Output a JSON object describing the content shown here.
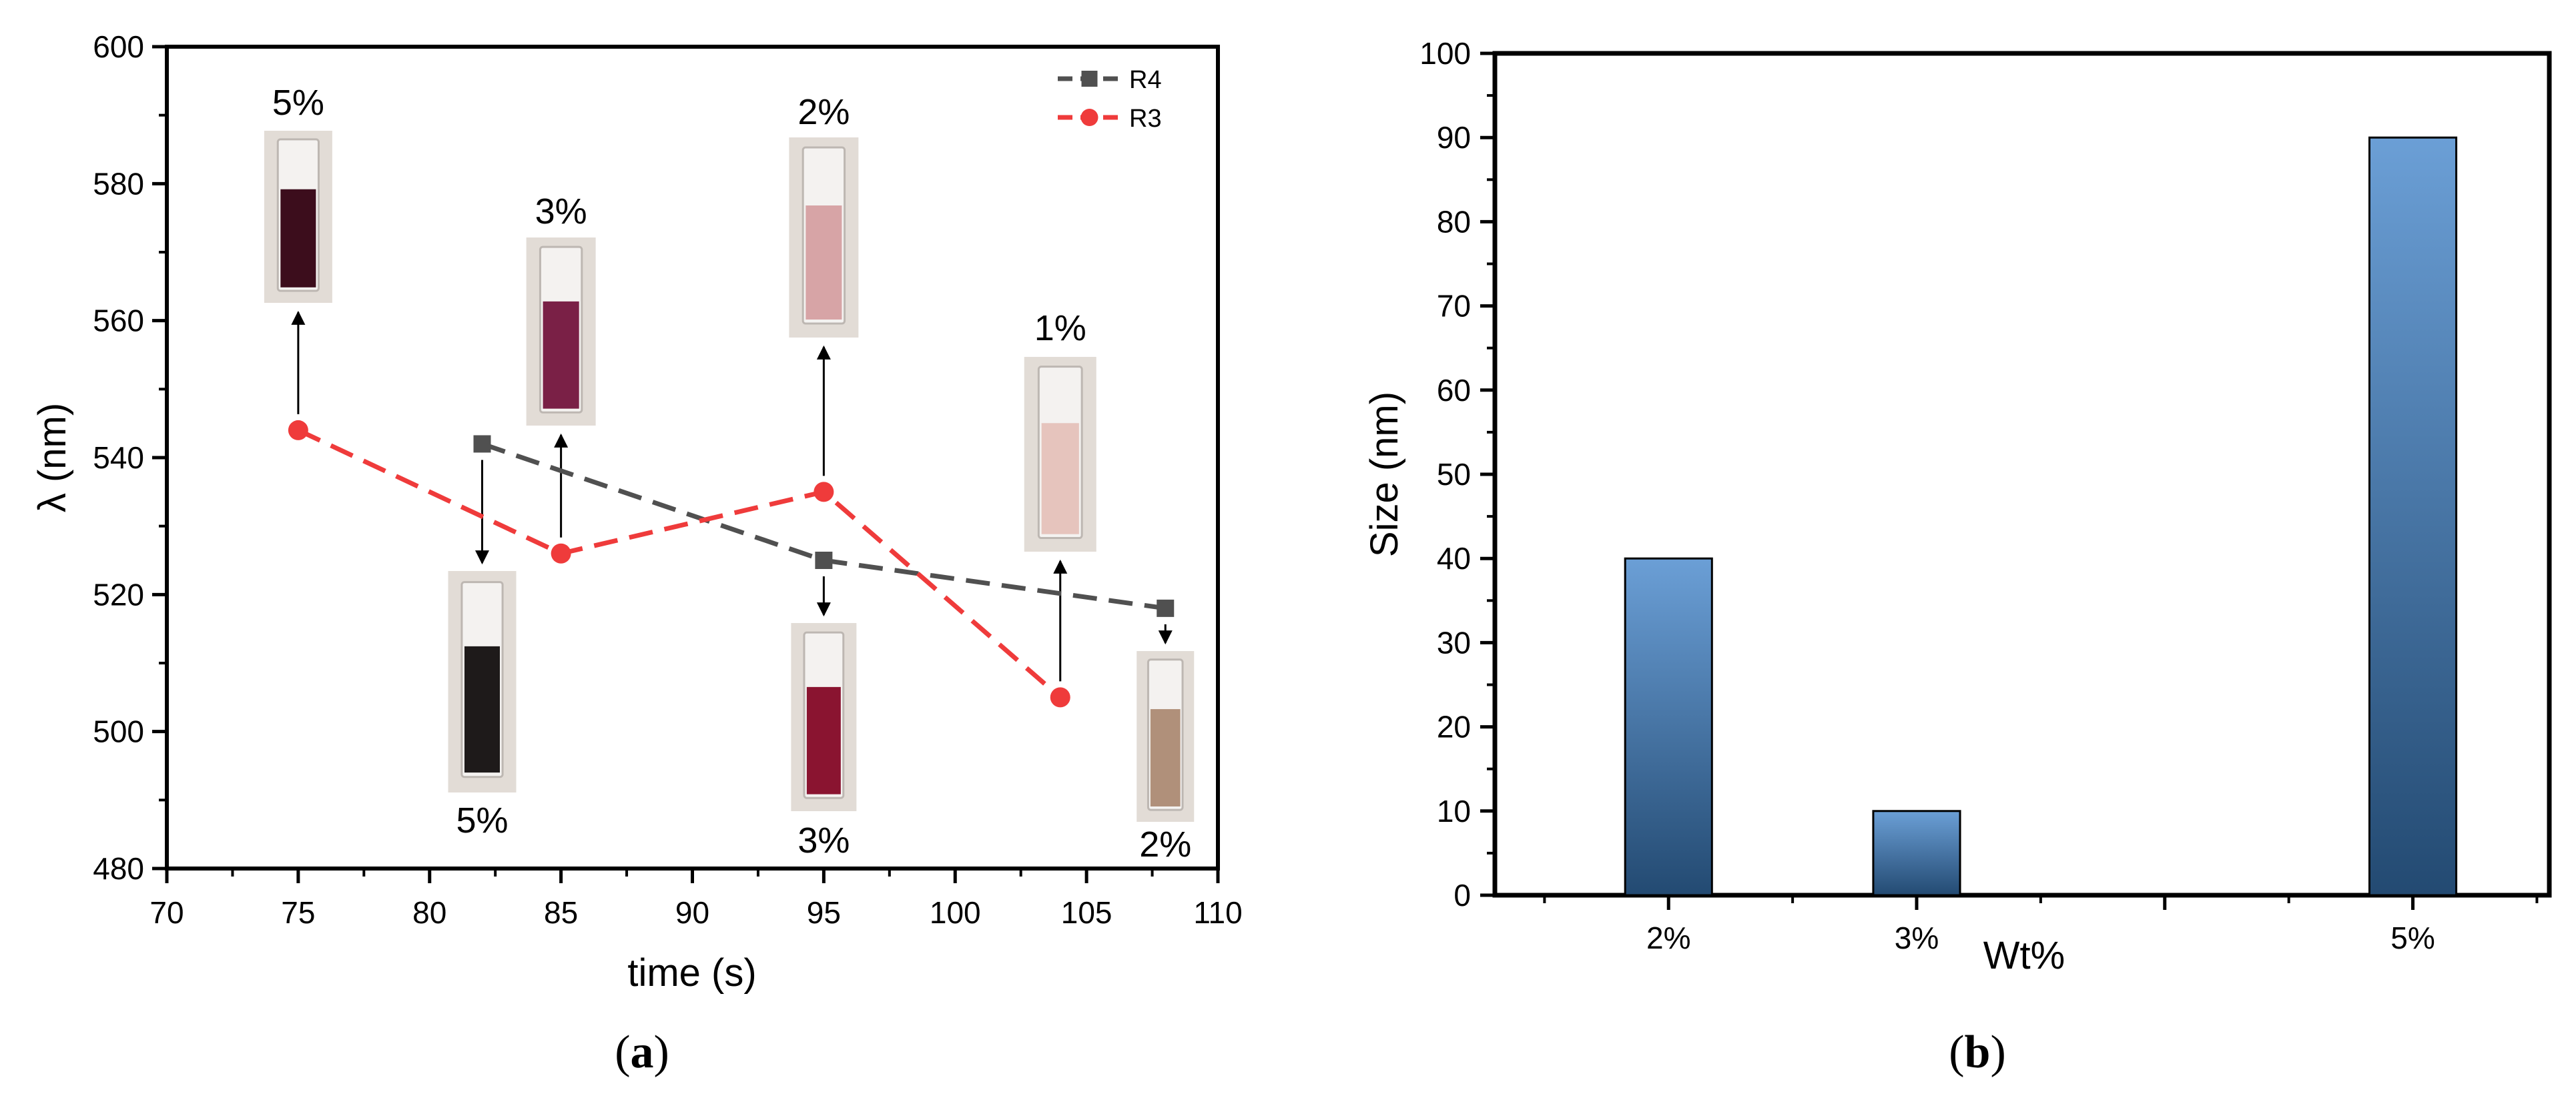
{
  "chart_data": [
    {
      "panel": "(a)",
      "type": "line",
      "xlabel": "time (s)",
      "ylabel": "λ (nm)",
      "xlim": [
        70,
        110
      ],
      "ylim": [
        480,
        600
      ],
      "xticks": [
        70,
        75,
        80,
        85,
        90,
        95,
        100,
        105,
        110
      ],
      "yticks": [
        480,
        500,
        520,
        540,
        560,
        580,
        600
      ],
      "legend_position": "top-right",
      "grid": false,
      "series": [
        {
          "name": "R4",
          "marker": "square",
          "color": "#505050",
          "x": [
            82,
            95,
            108
          ],
          "y": [
            542,
            525,
            518
          ],
          "annotations": [
            "5%",
            "3%",
            "2%"
          ]
        },
        {
          "name": "R3",
          "marker": "circle",
          "color": "#ef3b3b",
          "x": [
            75,
            85,
            95,
            104
          ],
          "y": [
            544,
            526,
            535,
            505
          ],
          "annotations": [
            "5%",
            "3%",
            "2%",
            "1%"
          ]
        }
      ],
      "vial_colors": {
        "R3": [
          "#3c0d1c",
          "#7a2046",
          "#d7a4a6",
          "#e6c4bd"
        ],
        "R4": [
          "#1e1a1a",
          "#8a1430",
          "#b0907a"
        ]
      }
    },
    {
      "panel": "(b)",
      "type": "bar",
      "xlabel": "Wt%",
      "ylabel": "Size (nm)",
      "ylim": [
        0,
        100
      ],
      "yticks": [
        0,
        10,
        20,
        30,
        40,
        50,
        60,
        70,
        80,
        90,
        100
      ],
      "grid": false,
      "categories": [
        "2%",
        "3%",
        "5%"
      ],
      "x_positions": [
        2,
        3,
        5
      ],
      "xlim": [
        1.3,
        5.55
      ],
      "values": [
        40,
        10,
        90
      ],
      "bar_color_top": "#6b9fd6",
      "bar_color_bottom": "#234a72"
    }
  ]
}
